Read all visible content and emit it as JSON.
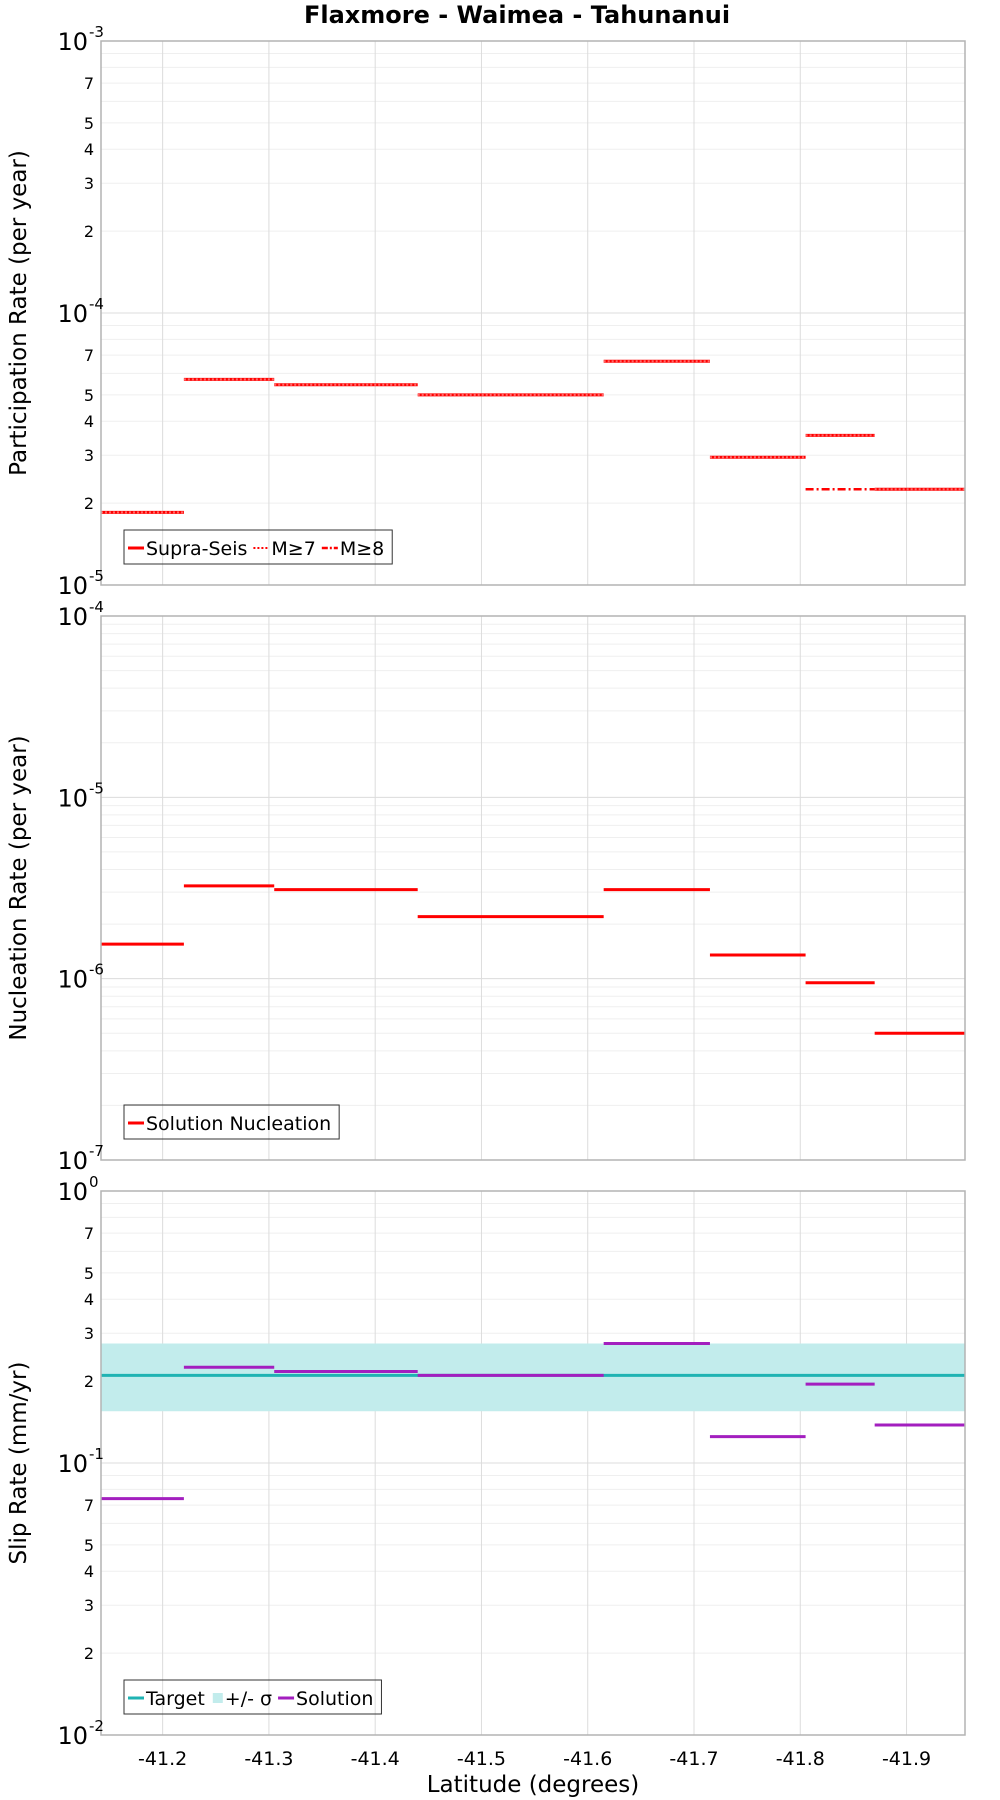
{
  "figure_title": "Flaxmore - Waimea - Tahunanui",
  "x_axis": {
    "label": "Latitude (degrees)",
    "range": [
      -41.142,
      -41.955
    ],
    "ticks": [
      -41.2,
      -41.3,
      -41.4,
      -41.5,
      -41.6,
      -41.7,
      -41.8,
      -41.9
    ],
    "tick_labels": [
      "-41.2",
      "-41.3",
      "-41.4",
      "-41.5",
      "-41.6",
      "-41.7",
      "-41.8",
      "-41.9"
    ]
  },
  "colors": {
    "red": "#ff0000",
    "cyan": "#1fb3b3",
    "cyan_band": "#c2ecec",
    "purple": "#a31fbf"
  },
  "chart_data": [
    {
      "type": "line",
      "name": "participation",
      "scale": "log",
      "ylabel": "Participation Rate (per year)",
      "ylim": [
        1e-05,
        0.001
      ],
      "y_major": [
        {
          "value": 0.001,
          "base": "10",
          "exp": "-3"
        },
        {
          "value": 0.0001,
          "base": "10",
          "exp": "-4"
        },
        {
          "value": 1e-05,
          "base": "10",
          "exp": "-5"
        }
      ],
      "y_minor_labels": [
        {
          "value": 0.0007,
          "label": "7"
        },
        {
          "value": 0.0005,
          "label": "5"
        },
        {
          "value": 0.0004,
          "label": "4"
        },
        {
          "value": 0.0003,
          "label": "3"
        },
        {
          "value": 0.0002,
          "label": "2"
        },
        {
          "value": 7e-05,
          "label": "7"
        },
        {
          "value": 5e-05,
          "label": "5"
        },
        {
          "value": 4e-05,
          "label": "4"
        },
        {
          "value": 3e-05,
          "label": "3"
        },
        {
          "value": 2e-05,
          "label": "2"
        }
      ],
      "legend": [
        "Supra-Seis",
        "M≥7",
        "M≥8"
      ],
      "series": [
        {
          "name": "Supra-Seis",
          "style": "solid",
          "color": "#ff0000",
          "segments": [
            {
              "x0": -41.142,
              "x1": -41.22,
              "y": 1.85e-05
            },
            {
              "x0": -41.22,
              "x1": -41.305,
              "y": 5.7e-05
            },
            {
              "x0": -41.305,
              "x1": -41.44,
              "y": 5.45e-05
            },
            {
              "x0": -41.44,
              "x1": -41.615,
              "y": 5e-05
            },
            {
              "x0": -41.615,
              "x1": -41.715,
              "y": 6.65e-05
            },
            {
              "x0": -41.715,
              "x1": -41.805,
              "y": 2.95e-05
            },
            {
              "x0": -41.805,
              "x1": -41.87,
              "y": 3.55e-05
            },
            {
              "x0": -41.87,
              "x1": -41.955,
              "y": 2.25e-05
            }
          ]
        },
        {
          "name": "M≥7",
          "style": "dotted",
          "color": "#ff0000",
          "segments": [
            {
              "x0": -41.142,
              "x1": -41.22,
              "y": 1.85e-05
            },
            {
              "x0": -41.22,
              "x1": -41.305,
              "y": 5.7e-05
            },
            {
              "x0": -41.305,
              "x1": -41.44,
              "y": 5.45e-05
            },
            {
              "x0": -41.44,
              "x1": -41.615,
              "y": 5e-05
            },
            {
              "x0": -41.615,
              "x1": -41.715,
              "y": 6.65e-05
            },
            {
              "x0": -41.715,
              "x1": -41.805,
              "y": 2.95e-05
            },
            {
              "x0": -41.805,
              "x1": -41.87,
              "y": 3.55e-05
            },
            {
              "x0": -41.87,
              "x1": -41.955,
              "y": 2.25e-05
            }
          ]
        },
        {
          "name": "M≥8",
          "style": "dashdot",
          "color": "#ff0000",
          "segments": [
            {
              "x0": -41.805,
              "x1": -41.87,
              "y": 2.25e-05
            }
          ]
        }
      ]
    },
    {
      "type": "line",
      "name": "nucleation",
      "scale": "log",
      "ylabel": "Nucleation Rate (per year)",
      "ylim": [
        1e-07,
        0.0001
      ],
      "y_major": [
        {
          "value": 0.0001,
          "base": "10",
          "exp": "-4"
        },
        {
          "value": 1e-05,
          "base": "10",
          "exp": "-5"
        },
        {
          "value": 1e-06,
          "base": "10",
          "exp": "-6"
        },
        {
          "value": 1e-07,
          "base": "10",
          "exp": "-7"
        }
      ],
      "y_minor_labels": [],
      "legend": [
        "Solution Nucleation"
      ],
      "series": [
        {
          "name": "Solution Nucleation",
          "style": "solid",
          "color": "#ff0000",
          "segments": [
            {
              "x0": -41.142,
              "x1": -41.22,
              "y": 1.55e-06
            },
            {
              "x0": -41.22,
              "x1": -41.305,
              "y": 3.25e-06
            },
            {
              "x0": -41.305,
              "x1": -41.44,
              "y": 3.1e-06
            },
            {
              "x0": -41.44,
              "x1": -41.615,
              "y": 2.2e-06
            },
            {
              "x0": -41.615,
              "x1": -41.715,
              "y": 3.1e-06
            },
            {
              "x0": -41.715,
              "x1": -41.805,
              "y": 1.35e-06
            },
            {
              "x0": -41.805,
              "x1": -41.87,
              "y": 9.5e-07
            },
            {
              "x0": -41.87,
              "x1": -41.955,
              "y": 5e-07
            }
          ]
        }
      ]
    },
    {
      "type": "line",
      "name": "slip",
      "scale": "log",
      "ylabel": "Slip Rate (mm/yr)",
      "ylim": [
        0.01,
        1
      ],
      "y_major": [
        {
          "value": 1,
          "base": "10",
          "exp": "0"
        },
        {
          "value": 0.1,
          "base": "10",
          "exp": "-1"
        },
        {
          "value": 0.01,
          "base": "10",
          "exp": "-2"
        }
      ],
      "y_minor_labels": [
        {
          "value": 0.7,
          "label": "7"
        },
        {
          "value": 0.5,
          "label": "5"
        },
        {
          "value": 0.4,
          "label": "4"
        },
        {
          "value": 0.3,
          "label": "3"
        },
        {
          "value": 0.2,
          "label": "2"
        },
        {
          "value": 0.07,
          "label": "7"
        },
        {
          "value": 0.05,
          "label": "5"
        },
        {
          "value": 0.04,
          "label": "4"
        },
        {
          "value": 0.03,
          "label": "3"
        },
        {
          "value": 0.02,
          "label": "2"
        }
      ],
      "legend": [
        "Target",
        "+/- σ",
        "Solution"
      ],
      "band": {
        "name": "+/- σ",
        "y_low": 0.155,
        "y_high": 0.275,
        "color": "#c2ecec"
      },
      "series": [
        {
          "name": "Target",
          "style": "solid",
          "color": "#1fb3b3",
          "segments": [
            {
              "x0": -41.142,
              "x1": -41.955,
              "y": 0.21
            }
          ]
        },
        {
          "name": "Solution",
          "style": "solid",
          "color": "#a31fbf",
          "segments": [
            {
              "x0": -41.142,
              "x1": -41.22,
              "y": 0.074
            },
            {
              "x0": -41.22,
              "x1": -41.305,
              "y": 0.225
            },
            {
              "x0": -41.305,
              "x1": -41.44,
              "y": 0.217
            },
            {
              "x0": -41.44,
              "x1": -41.615,
              "y": 0.21
            },
            {
              "x0": -41.615,
              "x1": -41.715,
              "y": 0.275
            },
            {
              "x0": -41.715,
              "x1": -41.805,
              "y": 0.125
            },
            {
              "x0": -41.805,
              "x1": -41.87,
              "y": 0.195
            },
            {
              "x0": -41.87,
              "x1": -41.955,
              "y": 0.138
            }
          ]
        }
      ]
    }
  ]
}
